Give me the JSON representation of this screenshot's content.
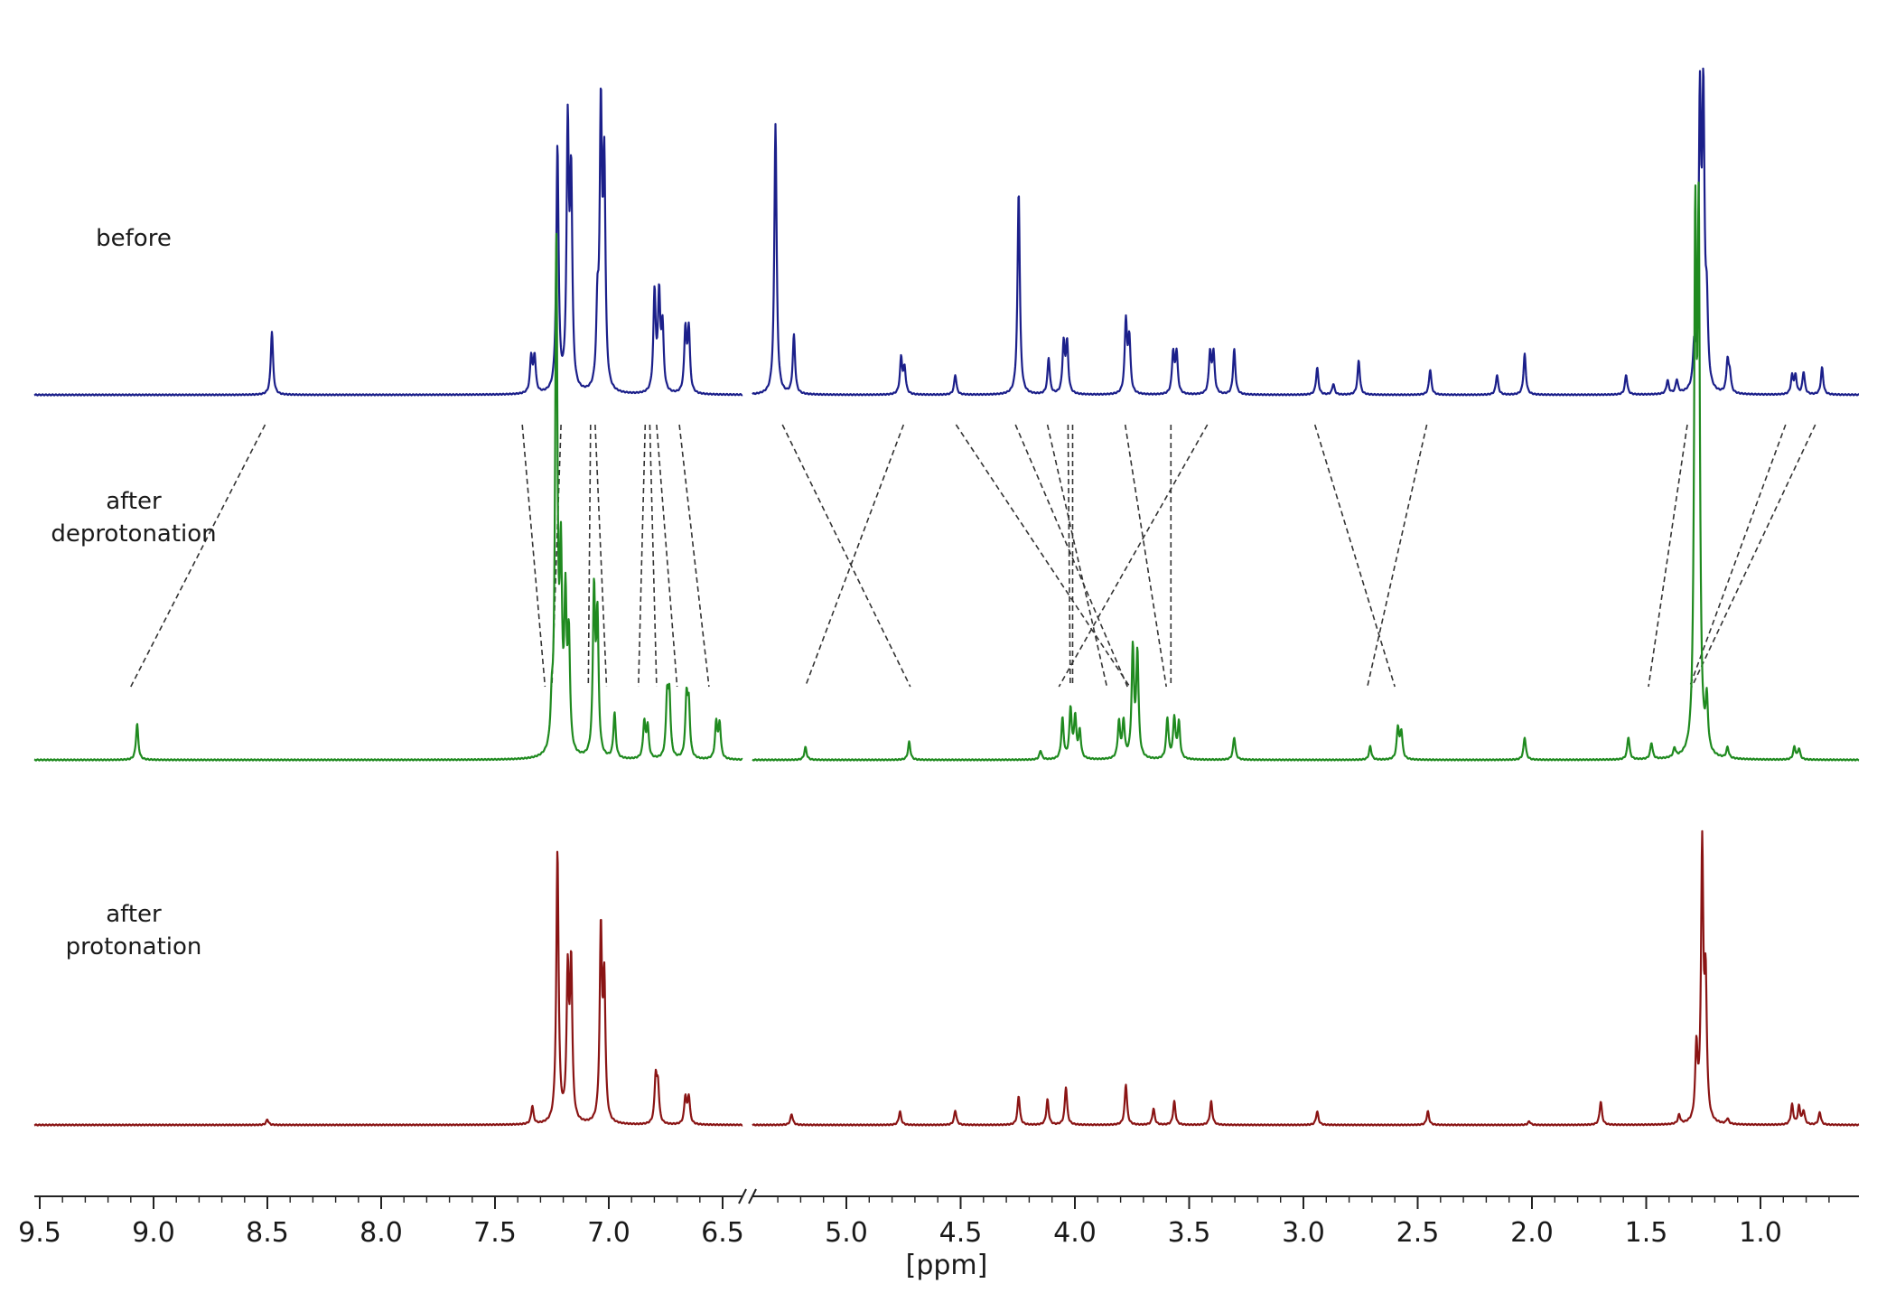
{
  "chart_data": {
    "type": "line",
    "xlabel": "[ppm]",
    "x_reversed": true,
    "axis_break": [
      5.4,
      6.45
    ],
    "xlim_left": [
      6.45,
      9.55
    ],
    "xlim_right": [
      0.6,
      5.4
    ],
    "grid": false,
    "legend": "none",
    "x_ticks": [
      {
        "value": 9.5,
        "label": "9.5"
      },
      {
        "value": 9.0,
        "label": "9.0"
      },
      {
        "value": 8.5,
        "label": "8.5"
      },
      {
        "value": 8.0,
        "label": "8.0"
      },
      {
        "value": 7.5,
        "label": "7.5"
      },
      {
        "value": 7.0,
        "label": "7.0"
      },
      {
        "value": 6.5,
        "label": "6.5"
      },
      {
        "value": 5.0,
        "label": "5.0"
      },
      {
        "value": 4.5,
        "label": "4.5"
      },
      {
        "value": 4.0,
        "label": "4.0"
      },
      {
        "value": 3.5,
        "label": "3.5"
      },
      {
        "value": 3.0,
        "label": "3.0"
      },
      {
        "value": 2.5,
        "label": "2.5"
      },
      {
        "value": 2.0,
        "label": "2.0"
      },
      {
        "value": 1.5,
        "label": "1.5"
      },
      {
        "value": 1.0,
        "label": "1.0"
      }
    ],
    "series": [
      {
        "label_lines": [
          "before"
        ],
        "color": "#1b1f8a",
        "peaks": [
          {
            "ppm": 8.51,
            "h": 70
          },
          {
            "ppm": 7.375,
            "h": 40
          },
          {
            "ppm": 7.36,
            "h": 40
          },
          {
            "ppm": 7.26,
            "h": 270
          },
          {
            "ppm": 7.215,
            "h": 285
          },
          {
            "ppm": 7.2,
            "h": 225
          },
          {
            "ppm": 7.07,
            "h": 300
          },
          {
            "ppm": 7.055,
            "h": 240
          },
          {
            "ppm": 7.085,
            "h": 80
          },
          {
            "ppm": 6.835,
            "h": 110
          },
          {
            "ppm": 6.815,
            "h": 105
          },
          {
            "ppm": 6.8,
            "h": 70
          },
          {
            "ppm": 6.7,
            "h": 70
          },
          {
            "ppm": 6.685,
            "h": 70
          },
          {
            "ppm": 5.3,
            "h": 300
          },
          {
            "ppm": 5.22,
            "h": 65
          },
          {
            "ppm": 4.755,
            "h": 40
          },
          {
            "ppm": 4.74,
            "h": 28
          },
          {
            "ppm": 4.52,
            "h": 22
          },
          {
            "ppm": 4.245,
            "h": 225
          },
          {
            "ppm": 4.115,
            "h": 40
          },
          {
            "ppm": 4.05,
            "h": 55
          },
          {
            "ppm": 4.035,
            "h": 55
          },
          {
            "ppm": 3.78,
            "h": 80
          },
          {
            "ppm": 3.765,
            "h": 60
          },
          {
            "ppm": 3.575,
            "h": 45
          },
          {
            "ppm": 3.56,
            "h": 45
          },
          {
            "ppm": 3.415,
            "h": 45
          },
          {
            "ppm": 3.4,
            "h": 45
          },
          {
            "ppm": 3.31,
            "h": 50
          },
          {
            "ppm": 2.95,
            "h": 30
          },
          {
            "ppm": 2.88,
            "h": 12
          },
          {
            "ppm": 2.77,
            "h": 38
          },
          {
            "ppm": 2.46,
            "h": 28
          },
          {
            "ppm": 2.17,
            "h": 22
          },
          {
            "ppm": 2.05,
            "h": 45
          },
          {
            "ppm": 1.61,
            "h": 22
          },
          {
            "ppm": 1.43,
            "h": 15
          },
          {
            "ppm": 1.39,
            "h": 15
          },
          {
            "ppm": 1.315,
            "h": 40
          },
          {
            "ppm": 1.29,
            "h": 310
          },
          {
            "ppm": 1.275,
            "h": 310
          },
          {
            "ppm": 1.26,
            "h": 80
          },
          {
            "ppm": 1.17,
            "h": 35
          },
          {
            "ppm": 1.16,
            "h": 20
          },
          {
            "ppm": 0.89,
            "h": 20
          },
          {
            "ppm": 0.875,
            "h": 20
          },
          {
            "ppm": 0.84,
            "h": 25
          },
          {
            "ppm": 0.76,
            "h": 30
          }
        ]
      },
      {
        "label_lines": [
          "after",
          "deprotonation"
        ],
        "color": "#1f8a1f",
        "peaks": [
          {
            "ppm": 9.1,
            "h": 40
          },
          {
            "ppm": 7.285,
            "h": 40
          },
          {
            "ppm": 7.265,
            "h": 560
          },
          {
            "ppm": 7.245,
            "h": 200
          },
          {
            "ppm": 7.225,
            "h": 160
          },
          {
            "ppm": 7.21,
            "h": 120
          },
          {
            "ppm": 7.1,
            "h": 180
          },
          {
            "ppm": 7.085,
            "h": 150
          },
          {
            "ppm": 7.01,
            "h": 50
          },
          {
            "ppm": 6.88,
            "h": 40
          },
          {
            "ppm": 6.865,
            "h": 35
          },
          {
            "ppm": 6.78,
            "h": 65
          },
          {
            "ppm": 6.77,
            "h": 65
          },
          {
            "ppm": 6.695,
            "h": 65
          },
          {
            "ppm": 6.685,
            "h": 55
          },
          {
            "ppm": 6.565,
            "h": 40
          },
          {
            "ppm": 6.55,
            "h": 38
          },
          {
            "ppm": 5.17,
            "h": 14
          },
          {
            "ppm": 4.72,
            "h": 20
          },
          {
            "ppm": 4.15,
            "h": 10
          },
          {
            "ppm": 4.055,
            "h": 45
          },
          {
            "ppm": 4.02,
            "h": 55
          },
          {
            "ppm": 4.0,
            "h": 45
          },
          {
            "ppm": 3.98,
            "h": 30
          },
          {
            "ppm": 3.81,
            "h": 40
          },
          {
            "ppm": 3.79,
            "h": 40
          },
          {
            "ppm": 3.75,
            "h": 120
          },
          {
            "ppm": 3.73,
            "h": 115
          },
          {
            "ppm": 3.6,
            "h": 45
          },
          {
            "ppm": 3.57,
            "h": 45
          },
          {
            "ppm": 3.55,
            "h": 40
          },
          {
            "ppm": 3.31,
            "h": 25
          },
          {
            "ppm": 2.72,
            "h": 15
          },
          {
            "ppm": 2.6,
            "h": 35
          },
          {
            "ppm": 2.585,
            "h": 30
          },
          {
            "ppm": 2.05,
            "h": 25
          },
          {
            "ppm": 1.6,
            "h": 25
          },
          {
            "ppm": 1.5,
            "h": 18
          },
          {
            "ppm": 1.4,
            "h": 10
          },
          {
            "ppm": 1.31,
            "h": 560
          },
          {
            "ppm": 1.295,
            "h": 560
          },
          {
            "ppm": 1.26,
            "h": 55
          },
          {
            "ppm": 1.17,
            "h": 12
          },
          {
            "ppm": 0.88,
            "h": 14
          },
          {
            "ppm": 0.86,
            "h": 12
          }
        ]
      },
      {
        "label_lines": [
          "after",
          "protonation"
        ],
        "color": "#8a1414",
        "peaks": [
          {
            "ppm": 8.53,
            "h": 6
          },
          {
            "ppm": 7.37,
            "h": 20
          },
          {
            "ppm": 7.26,
            "h": 300
          },
          {
            "ppm": 7.215,
            "h": 160
          },
          {
            "ppm": 7.2,
            "h": 170
          },
          {
            "ppm": 7.07,
            "h": 210
          },
          {
            "ppm": 7.055,
            "h": 150
          },
          {
            "ppm": 6.83,
            "h": 50
          },
          {
            "ppm": 6.82,
            "h": 40
          },
          {
            "ppm": 6.7,
            "h": 30
          },
          {
            "ppm": 6.685,
            "h": 30
          },
          {
            "ppm": 5.23,
            "h": 12
          },
          {
            "ppm": 4.76,
            "h": 15
          },
          {
            "ppm": 4.52,
            "h": 16
          },
          {
            "ppm": 4.245,
            "h": 32
          },
          {
            "ppm": 4.12,
            "h": 28
          },
          {
            "ppm": 4.04,
            "h": 42
          },
          {
            "ppm": 3.78,
            "h": 45
          },
          {
            "ppm": 3.66,
            "h": 18
          },
          {
            "ppm": 3.57,
            "h": 26
          },
          {
            "ppm": 3.41,
            "h": 26
          },
          {
            "ppm": 2.95,
            "h": 15
          },
          {
            "ppm": 2.47,
            "h": 15
          },
          {
            "ppm": 2.03,
            "h": 4
          },
          {
            "ppm": 1.72,
            "h": 26
          },
          {
            "ppm": 1.38,
            "h": 10
          },
          {
            "ppm": 1.305,
            "h": 80
          },
          {
            "ppm": 1.28,
            "h": 300
          },
          {
            "ppm": 1.265,
            "h": 145
          },
          {
            "ppm": 1.17,
            "h": 6
          },
          {
            "ppm": 0.89,
            "h": 22
          },
          {
            "ppm": 0.86,
            "h": 20
          },
          {
            "ppm": 0.84,
            "h": 15
          },
          {
            "ppm": 0.77,
            "h": 14
          }
        ]
      }
    ],
    "correlations": [
      {
        "from_ppm": 8.51,
        "to_ppm": 9.1
      },
      {
        "from_ppm": 7.38,
        "to_ppm": 7.28
      },
      {
        "from_ppm": 7.21,
        "to_ppm": 7.25
      },
      {
        "from_ppm": 7.08,
        "to_ppm": 7.09
      },
      {
        "from_ppm": 7.06,
        "to_ppm": 7.01
      },
      {
        "from_ppm": 6.84,
        "to_ppm": 6.87
      },
      {
        "from_ppm": 6.82,
        "to_ppm": 6.79
      },
      {
        "from_ppm": 6.79,
        "to_ppm": 6.7
      },
      {
        "from_ppm": 6.69,
        "to_ppm": 6.56
      },
      {
        "from_ppm": 5.28,
        "to_ppm": 4.72
      },
      {
        "from_ppm": 4.75,
        "to_ppm": 5.18
      },
      {
        "from_ppm": 4.52,
        "to_ppm": 3.76
      },
      {
        "from_ppm": 4.26,
        "to_ppm": 3.77
      },
      {
        "from_ppm": 4.12,
        "to_ppm": 3.86
      },
      {
        "from_ppm": 4.03,
        "to_ppm": 4.02
      },
      {
        "from_ppm": 4.01,
        "to_ppm": 4.01
      },
      {
        "from_ppm": 3.78,
        "to_ppm": 3.6
      },
      {
        "from_ppm": 3.58,
        "to_ppm": 3.58
      },
      {
        "from_ppm": 3.42,
        "to_ppm": 4.07
      },
      {
        "from_ppm": 2.95,
        "to_ppm": 2.6
      },
      {
        "from_ppm": 2.46,
        "to_ppm": 2.72
      },
      {
        "from_ppm": 1.32,
        "to_ppm": 1.49
      },
      {
        "from_ppm": 0.89,
        "to_ppm": 1.31
      },
      {
        "from_ppm": 0.76,
        "to_ppm": 1.3
      }
    ]
  }
}
